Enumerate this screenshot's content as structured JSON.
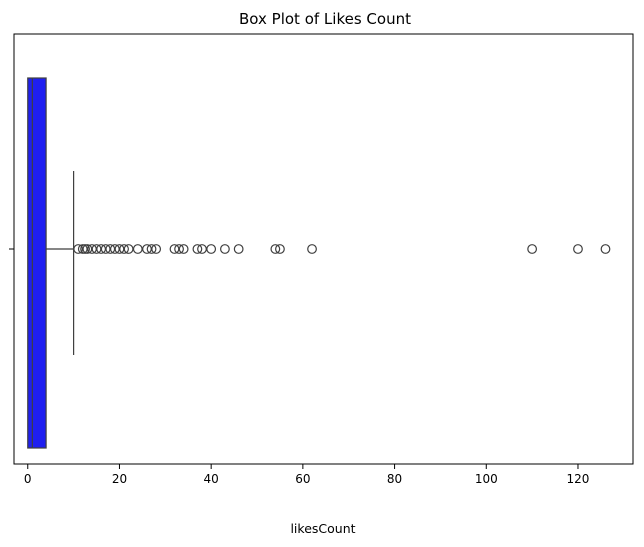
{
  "chart_data": {
    "type": "box",
    "orientation": "horizontal",
    "title": "Box Plot of Likes Count",
    "xlabel": "likesCount",
    "ylabel": "",
    "xlim": [
      -3,
      132
    ],
    "xticks": [
      0,
      20,
      40,
      60,
      80,
      100,
      120
    ],
    "grid": false,
    "colors": {
      "box_fill": "#1f1ff0",
      "box_edge": "#3f3f3f",
      "whisker": "#3f3f3f",
      "flier_edge": "#3f3f3f"
    },
    "series": [
      {
        "min": 0,
        "q1": 0,
        "median": 1,
        "q3": 4,
        "whisker_high": 10,
        "outliers": [
          11,
          12,
          12.5,
          13,
          14,
          15,
          16,
          17,
          18,
          19,
          20,
          21,
          22,
          24,
          26,
          27,
          28,
          32,
          33,
          34,
          37,
          38,
          40,
          43,
          46,
          54,
          55,
          62,
          110,
          120,
          126
        ]
      }
    ]
  }
}
